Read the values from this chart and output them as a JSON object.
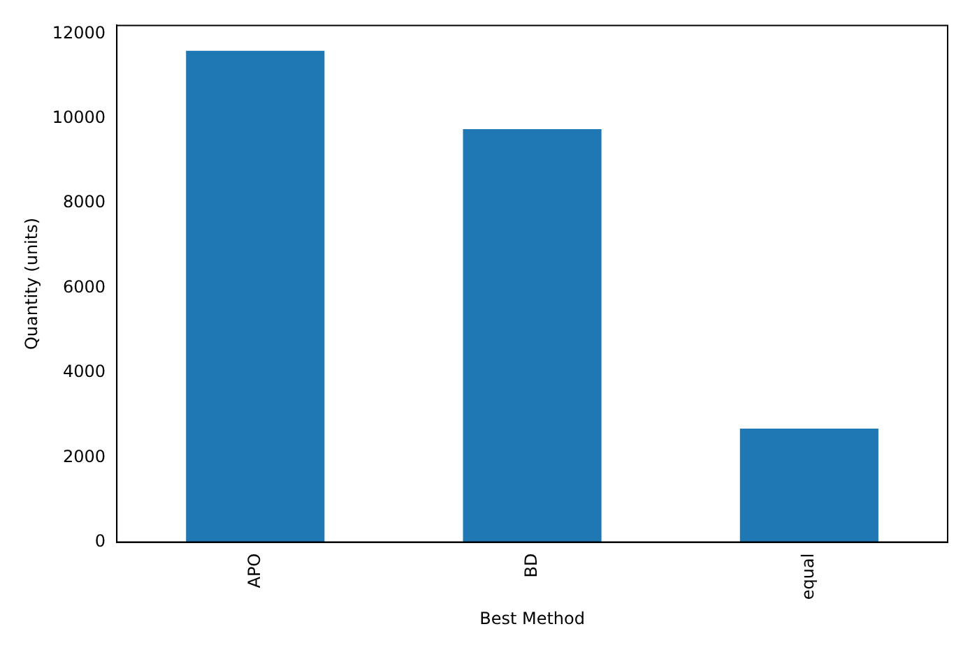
{
  "chart_data": {
    "type": "bar",
    "xlabel": "Best Method",
    "ylabel": "Quantity (units)",
    "categories": [
      "APO",
      "BD",
      "equal"
    ],
    "values": [
      11600,
      9750,
      2680
    ],
    "color": "#1f77b4",
    "ylim": [
      0,
      12200
    ],
    "yticks": [
      0,
      2000,
      4000,
      6000,
      8000,
      10000,
      12000
    ],
    "grid": false,
    "legend": false
  }
}
